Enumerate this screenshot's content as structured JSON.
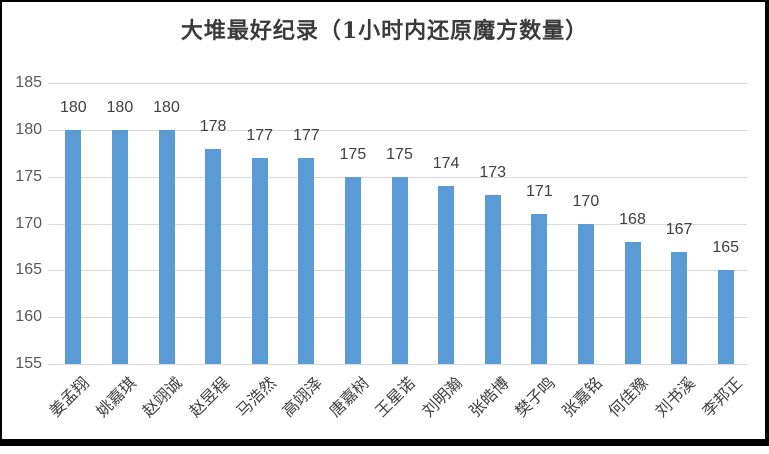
{
  "window": {
    "background_color": "#FFFFFF",
    "frame_color": "#000000"
  },
  "chart_data": {
    "type": "bar",
    "title": "大堆最好纪录（1小时内还原魔方数量）",
    "categories": [
      "姜孟翔",
      "姚嘉琪",
      "赵翊诚",
      "赵昱程",
      "马浩然",
      "高翊泽",
      "唐嘉树",
      "王星诺",
      "刘明瀚",
      "张皓博",
      "樊子鸣",
      "张嘉铭",
      "何佳豫",
      "刘书溪",
      "李邦正"
    ],
    "values": [
      180,
      180,
      180,
      178,
      177,
      177,
      175,
      175,
      174,
      173,
      171,
      170,
      168,
      167,
      165
    ],
    "xlabel": "",
    "ylabel": "",
    "ylim": [
      155,
      185
    ],
    "yticks": [
      185,
      180,
      175,
      170,
      165,
      160,
      155
    ],
    "grid": true,
    "legend": false,
    "data_labels": true,
    "colors": {
      "bar": "#5B9BD5",
      "gridline": "#D9D9D9",
      "y_axis_text": "#595959",
      "value_label_text": "#404040",
      "category_text": "#404040",
      "title_text": "#3B3B3B"
    }
  }
}
